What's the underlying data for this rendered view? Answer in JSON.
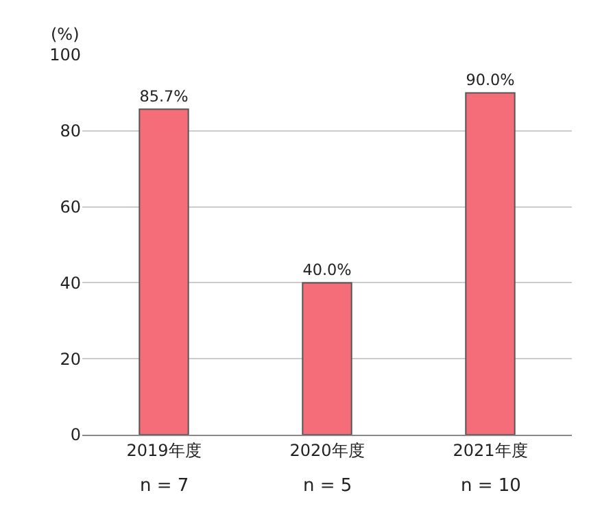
{
  "chart_data": {
    "type": "bar",
    "ylabel": "(%)",
    "categories": [
      "2019年度",
      "2020年度",
      "2021年度"
    ],
    "values": [
      85.7,
      40.0,
      90.0
    ],
    "value_labels": [
      "85.7%",
      "40.0%",
      "90.0%"
    ],
    "color": "#f46d79",
    "ylim": [
      0,
      100
    ],
    "yticks": [
      0,
      20,
      40,
      60,
      80,
      100
    ],
    "grid": "y",
    "annotations": [
      "n = 7",
      "n = 5",
      "n = 10"
    ]
  }
}
